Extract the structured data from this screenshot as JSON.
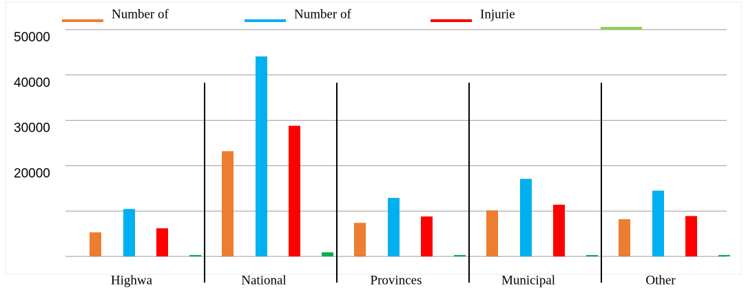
{
  "chart_data": {
    "type": "bar",
    "categories": [
      "Highwa",
      "National",
      "Provinces",
      "Municipal",
      "Other"
    ],
    "series": [
      {
        "name": "Number of",
        "color": "#ed7d31",
        "values": [
          5300,
          23200,
          7400,
          10150,
          8200
        ]
      },
      {
        "name": "Number of",
        "color": "#00b0f0",
        "values": [
          10450,
          44100,
          12900,
          17100,
          14500
        ]
      },
      {
        "name": "Injurie",
        "color": "#ff0000",
        "values": [
          6200,
          28800,
          8800,
          11400,
          8900
        ]
      },
      {
        "name": null,
        "color": "#92d050",
        "bar_color": "#00b050",
        "values": [
          300,
          900,
          300,
          300,
          300
        ]
      }
    ],
    "ylim": [
      0,
      50000
    ],
    "yticks": [
      20000,
      30000,
      40000,
      50000
    ],
    "unlabeled_grid": [
      0,
      10000
    ],
    "grid": true
  }
}
